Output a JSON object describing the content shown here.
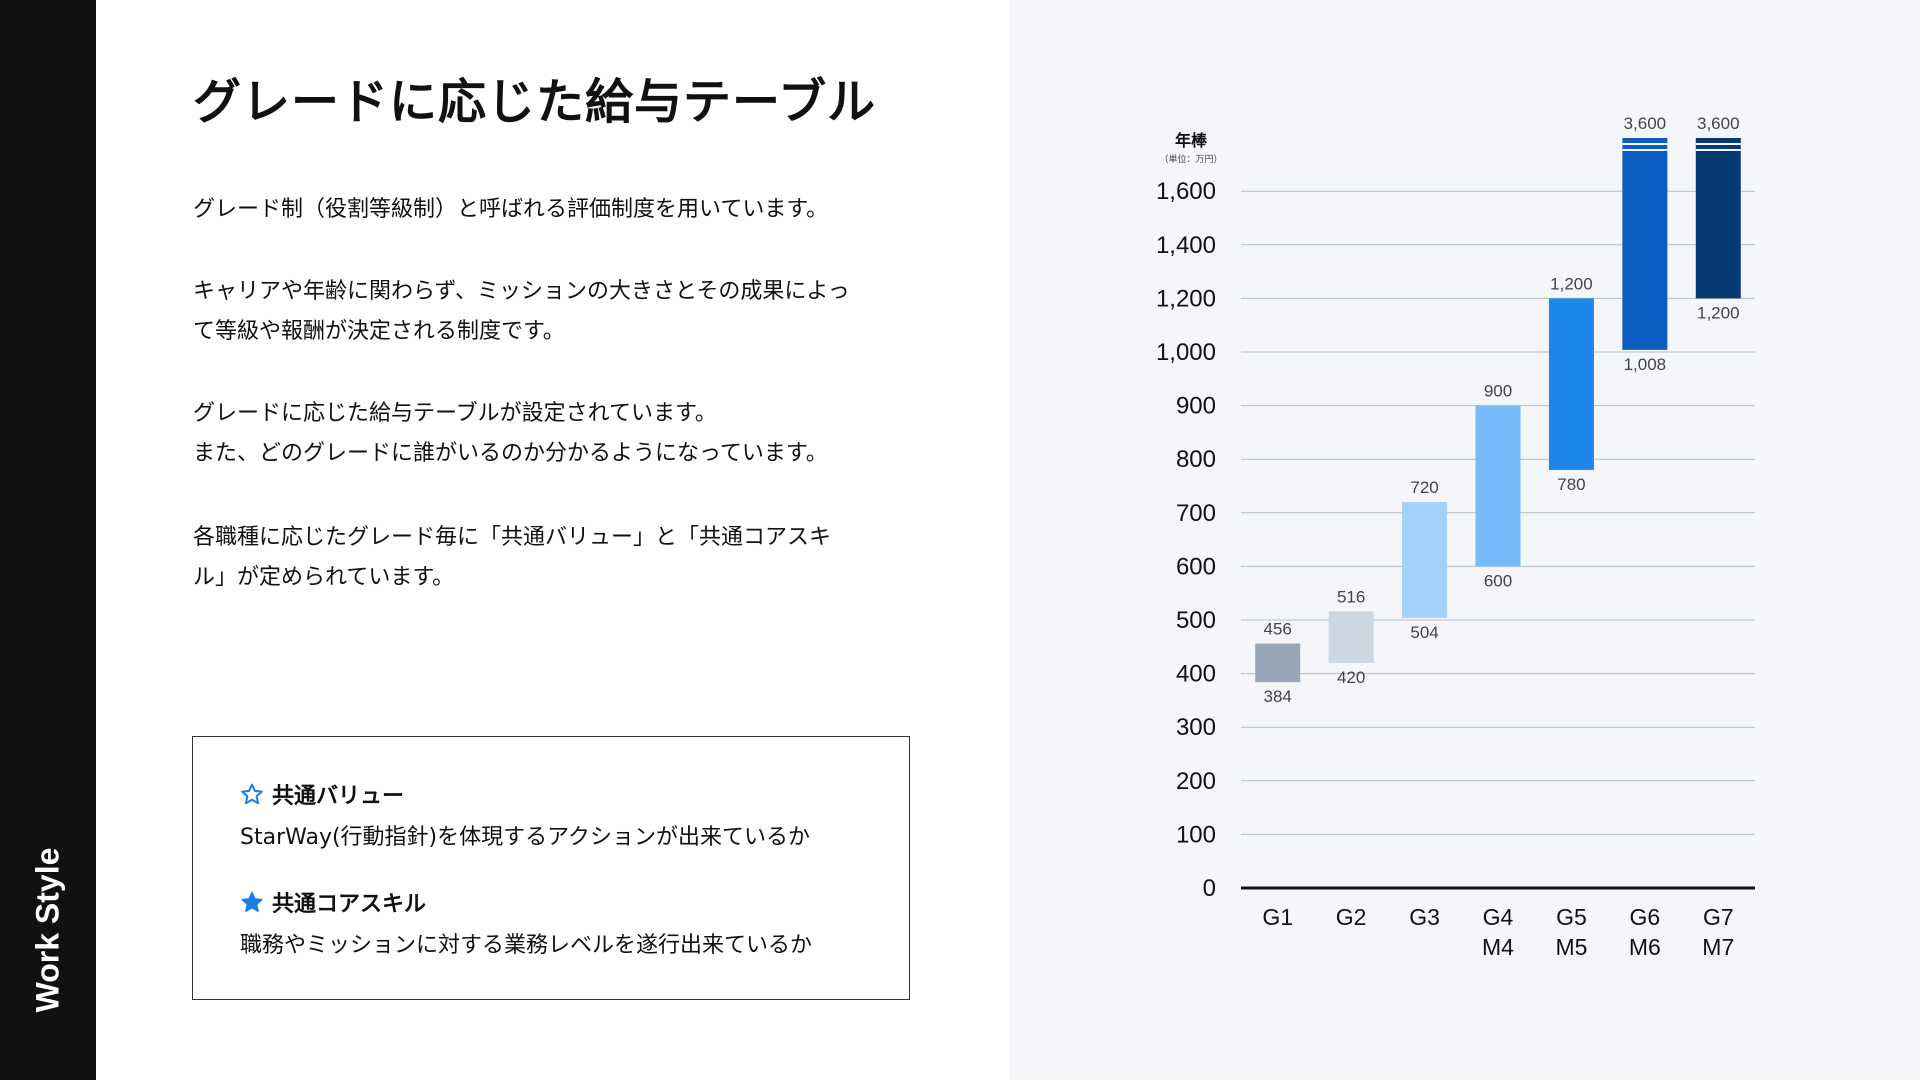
{
  "sidebar": {
    "label": "Work Style"
  },
  "title": "グレードに応じた給与テーブル",
  "paragraphs": {
    "p1": [
      "グレード制（役割等級制）と呼ばれる評価制度を用いています。"
    ],
    "p2": [
      "キャリアや年齢に関わらず、ミッションの大きさとその成果によっ",
      "て等級や報酬が決定される制度です。"
    ],
    "p3": [
      "グレードに応じた給与テーブルが設定されています。",
      "また、どのグレードに誰がいるのか分かるようになっています。"
    ],
    "p4": [
      "各職種に応じたグレード毎に「共通バリュー」と「共通コアスキ",
      "ル」が定められています。"
    ]
  },
  "info_box": {
    "value": {
      "icon": "star-outline-icon",
      "title": "共通バリュー",
      "desc": "StarWay(行動指針)を体現するアクションが出来ているか"
    },
    "skill": {
      "icon": "star-filled-icon",
      "title": "共通コアスキル",
      "desc": "職務やミッションに対する業務レベルを遂行出来ているか"
    }
  },
  "colors": {
    "accent": "#1a7fe0",
    "sidebar": "#111111",
    "chart_bg": "#f4f6f9"
  },
  "chart_data": {
    "type": "bar",
    "ylabel": "年棒",
    "unit": "（単位：万円）",
    "yticks": [
      "0",
      "100",
      "200",
      "300",
      "400",
      "500",
      "600",
      "700",
      "800",
      "900",
      "1,000",
      "1,200",
      "1,400",
      "1,600"
    ],
    "grid": true,
    "categories": [
      [
        "G1"
      ],
      [
        "G2"
      ],
      [
        "G3"
      ],
      [
        "G4",
        "M4"
      ],
      [
        "G5",
        "M5"
      ],
      [
        "G6",
        "M6"
      ],
      [
        "G7",
        "M7"
      ]
    ],
    "ranges": [
      {
        "min": 384,
        "max": 456,
        "min_label": "384",
        "max_label": "456",
        "color": "#99a6b8"
      },
      {
        "min": 420,
        "max": 516,
        "min_label": "420",
        "max_label": "516",
        "color": "#cdd7e3"
      },
      {
        "min": 504,
        "max": 720,
        "min_label": "504",
        "max_label": "720",
        "color": "#a3d1fb"
      },
      {
        "min": 600,
        "max": 900,
        "min_label": "600",
        "max_label": "900",
        "color": "#76bbfa"
      },
      {
        "min": 780,
        "max": 1200,
        "min_label": "780",
        "max_label": "1,200",
        "color": "#1d88ec"
      },
      {
        "min": 1008,
        "max": 3600,
        "min_label": "1,008",
        "max_label": "3,600",
        "color": "#0b5ebf",
        "truncated": true
      },
      {
        "min": 1200,
        "max": 3600,
        "min_label": "1,200",
        "max_label": "3,600",
        "color": "#073a73",
        "truncated": true
      }
    ]
  }
}
